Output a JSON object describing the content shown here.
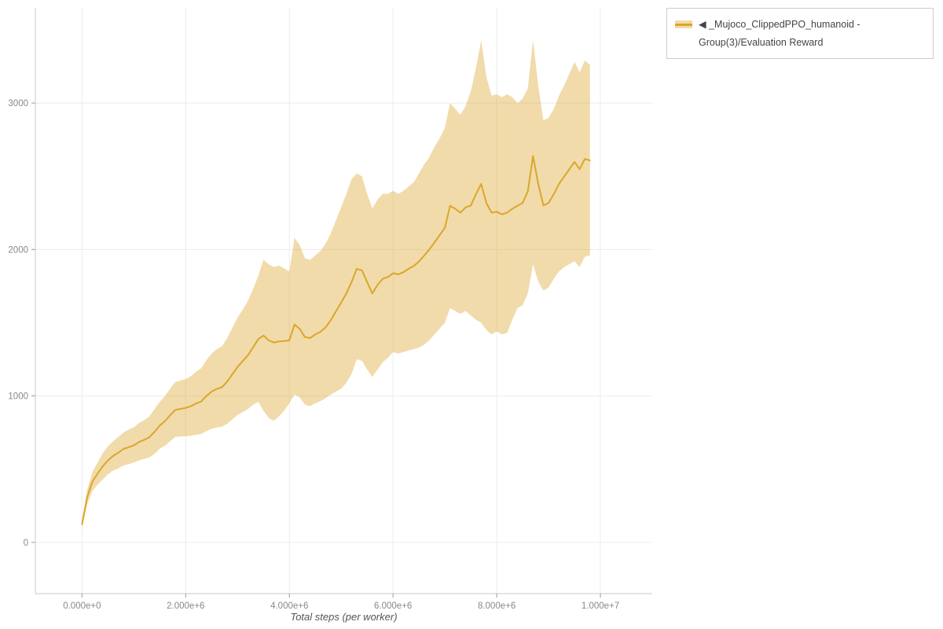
{
  "legend": {
    "swatch_icon": "line-with-band-swatch"
  },
  "chart_data": {
    "type": "line",
    "title": "",
    "xlabel": "Total steps (per worker)",
    "ylabel": "",
    "grid": true,
    "legend_position": "top-right",
    "x_unit_multiplier": 1000000,
    "xlim_millions": [
      -0.9,
      11.0
    ],
    "ylim": [
      -350,
      3650
    ],
    "x_ticks": [
      {
        "value_millions": 0,
        "label": "0.000e+0"
      },
      {
        "value_millions": 2,
        "label": "2.000e+6"
      },
      {
        "value_millions": 4,
        "label": "4.000e+6"
      },
      {
        "value_millions": 6,
        "label": "6.000e+6"
      },
      {
        "value_millions": 8,
        "label": "8.000e+6"
      },
      {
        "value_millions": 10,
        "label": "1.000e+7"
      }
    ],
    "y_ticks": [
      {
        "value": 0,
        "label": "0"
      },
      {
        "value": 1000,
        "label": "1000"
      },
      {
        "value": 2000,
        "label": "2000"
      },
      {
        "value": 3000,
        "label": "3000"
      }
    ],
    "colors": {
      "accent": "#DBA62A",
      "band": "rgba(219,166,42,0.4)",
      "grid": "#ececec",
      "axis": "#c8c8c8",
      "tick": "#9a9a9a",
      "tick_label": "#888888"
    },
    "x_millions": [
      0,
      0.1,
      0.2,
      0.3,
      0.4,
      0.5,
      0.6,
      0.7,
      0.8,
      0.9,
      1,
      1.1,
      1.2,
      1.3,
      1.4,
      1.5,
      1.6,
      1.7,
      1.8,
      1.9,
      2,
      2.1,
      2.2,
      2.3,
      2.4,
      2.5,
      2.6,
      2.7,
      2.8,
      2.9,
      3,
      3.1,
      3.2,
      3.3,
      3.4,
      3.5,
      3.6,
      3.7,
      3.8,
      3.9,
      4,
      4.1,
      4.2,
      4.3,
      4.4,
      4.5,
      4.6,
      4.7,
      4.8,
      4.9,
      5,
      5.1,
      5.2,
      5.3,
      5.4,
      5.5,
      5.6,
      5.7,
      5.8,
      5.9,
      6,
      6.1,
      6.2,
      6.3,
      6.4,
      6.5,
      6.6,
      6.7,
      6.8,
      6.9,
      7,
      7.1,
      7.2,
      7.3,
      7.4,
      7.5,
      7.6,
      7.7,
      7.8,
      7.9,
      8,
      8.1,
      8.2,
      8.3,
      8.4,
      8.5,
      8.6,
      8.7,
      8.8,
      8.9,
      9,
      9.1,
      9.2,
      9.3,
      9.4,
      9.5,
      9.6,
      9.7,
      9.8
    ],
    "series": [
      {
        "name": "◀ _Mujoco_ClippedPPO_humanoid - Group(3)/Evaluation Reward",
        "mean": [
          125,
          310,
          415,
          470,
          520,
          560,
          590,
          612,
          638,
          650,
          662,
          685,
          700,
          718,
          755,
          798,
          828,
          868,
          905,
          912,
          918,
          930,
          948,
          962,
          1000,
          1030,
          1048,
          1060,
          1098,
          1148,
          1198,
          1238,
          1278,
          1332,
          1388,
          1412,
          1380,
          1365,
          1372,
          1375,
          1380,
          1488,
          1458,
          1402,
          1395,
          1420,
          1438,
          1468,
          1518,
          1578,
          1638,
          1700,
          1778,
          1868,
          1858,
          1778,
          1700,
          1758,
          1800,
          1812,
          1838,
          1830,
          1845,
          1868,
          1888,
          1918,
          1958,
          2000,
          2048,
          2098,
          2148,
          2298,
          2278,
          2252,
          2288,
          2300,
          2378,
          2448,
          2318,
          2252,
          2258,
          2240,
          2252,
          2278,
          2298,
          2318,
          2398,
          2638,
          2448,
          2302,
          2318,
          2378,
          2448,
          2498,
          2548,
          2598,
          2548,
          2618,
          2608
        ],
        "lower": [
          100,
          260,
          350,
          395,
          430,
          465,
          490,
          505,
          525,
          535,
          545,
          560,
          570,
          580,
          605,
          640,
          660,
          690,
          720,
          722,
          725,
          728,
          735,
          740,
          760,
          775,
          785,
          790,
          810,
          840,
          870,
          890,
          910,
          940,
          960,
          900,
          850,
          830,
          860,
          900,
          950,
          1010,
          990,
          940,
          930,
          950,
          965,
          985,
          1010,
          1030,
          1050,
          1090,
          1150,
          1250,
          1240,
          1180,
          1130,
          1180,
          1230,
          1260,
          1300,
          1290,
          1300,
          1310,
          1320,
          1330,
          1350,
          1380,
          1420,
          1460,
          1500,
          1600,
          1580,
          1560,
          1580,
          1550,
          1520,
          1500,
          1450,
          1420,
          1440,
          1420,
          1430,
          1520,
          1600,
          1620,
          1700,
          1900,
          1780,
          1720,
          1740,
          1800,
          1850,
          1880,
          1900,
          1920,
          1880,
          1950,
          1960
        ],
        "upper": [
          150,
          360,
          480,
          545,
          610,
          655,
          690,
          720,
          750,
          770,
          785,
          815,
          835,
          860,
          910,
          960,
          1000,
          1050,
          1095,
          1105,
          1115,
          1135,
          1165,
          1190,
          1245,
          1290,
          1320,
          1340,
          1395,
          1465,
          1535,
          1590,
          1650,
          1730,
          1820,
          1930,
          1900,
          1880,
          1890,
          1870,
          1850,
          2080,
          2030,
          1940,
          1930,
          1960,
          1990,
          2040,
          2110,
          2200,
          2290,
          2380,
          2480,
          2520,
          2500,
          2380,
          2280,
          2340,
          2380,
          2380,
          2400,
          2380,
          2400,
          2430,
          2460,
          2520,
          2580,
          2630,
          2700,
          2760,
          2830,
          3000,
          2960,
          2920,
          2980,
          3080,
          3240,
          3430,
          3180,
          3050,
          3060,
          3040,
          3060,
          3040,
          3000,
          3030,
          3100,
          3430,
          3120,
          2880,
          2900,
          2960,
          3050,
          3120,
          3200,
          3280,
          3210,
          3290,
          3260
        ]
      }
    ]
  }
}
